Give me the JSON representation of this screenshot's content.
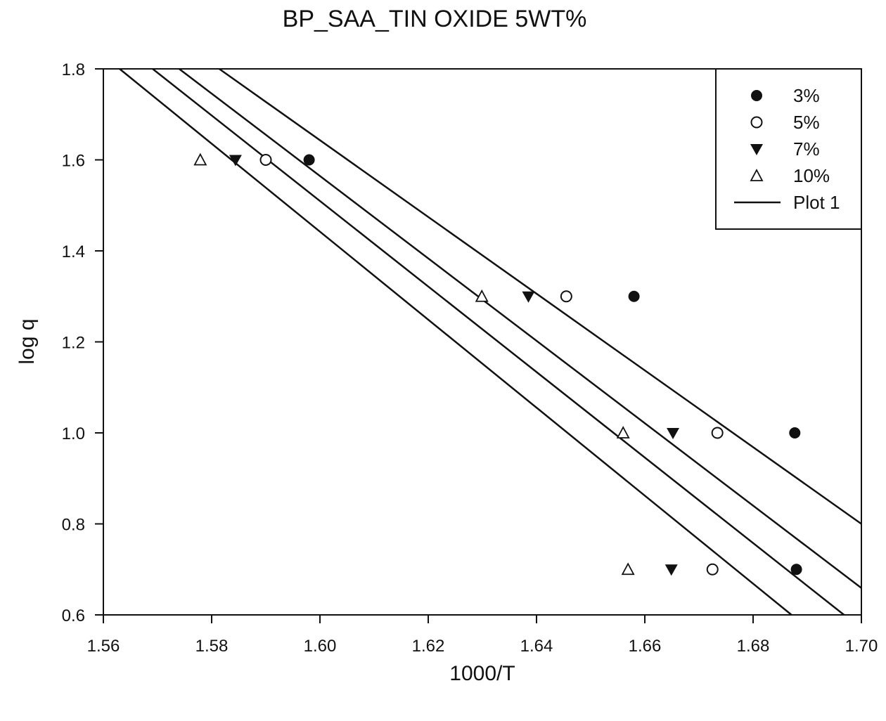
{
  "chart_data": {
    "type": "scatter",
    "title": "BP_SAA_TIN OXIDE 5WT%",
    "xlabel": "1000/T",
    "ylabel": "log q",
    "xlim": [
      1.56,
      1.7
    ],
    "ylim": [
      0.6,
      1.8
    ],
    "xticks": [
      "1.56",
      "1.58",
      "1.60",
      "1.62",
      "1.64",
      "1.66",
      "1.68",
      "1.70"
    ],
    "yticks": [
      "0.6",
      "0.8",
      "1.0",
      "1.2",
      "1.4",
      "1.6",
      "1.8"
    ],
    "grid": false,
    "legend_position": "top-right",
    "series": [
      {
        "name": "3%",
        "marker": "filled-circle",
        "points": [
          [
            1.598,
            1.6
          ],
          [
            1.658,
            1.3
          ],
          [
            1.6877,
            1.0
          ],
          [
            1.688,
            0.7
          ]
        ]
      },
      {
        "name": "5%",
        "marker": "open-circle",
        "points": [
          [
            1.59,
            1.6
          ],
          [
            1.6455,
            1.3
          ],
          [
            1.6734,
            1.0
          ],
          [
            1.6725,
            0.7
          ]
        ]
      },
      {
        "name": "7%",
        "marker": "filled-triangle-down",
        "points": [
          [
            1.5844,
            1.6
          ],
          [
            1.6385,
            1.3
          ],
          [
            1.6652,
            1.0
          ],
          [
            1.6649,
            0.7
          ]
        ]
      },
      {
        "name": "10%",
        "marker": "open-triangle-up",
        "points": [
          [
            1.5779,
            1.6
          ],
          [
            1.6299,
            1.3
          ],
          [
            1.656,
            1.0
          ],
          [
            1.6569,
            0.7
          ]
        ]
      }
    ],
    "fit_lines": {
      "name": "Plot 1",
      "lines": [
        [
          [
            1.5814,
            1.8
          ],
          [
            1.7,
            0.8
          ]
        ],
        [
          [
            1.574,
            1.8
          ],
          [
            1.7,
            0.659
          ]
        ],
        [
          [
            1.5691,
            1.8
          ],
          [
            1.6968,
            0.6
          ]
        ],
        [
          [
            1.563,
            1.8
          ],
          [
            1.6871,
            0.6
          ]
        ]
      ]
    }
  }
}
